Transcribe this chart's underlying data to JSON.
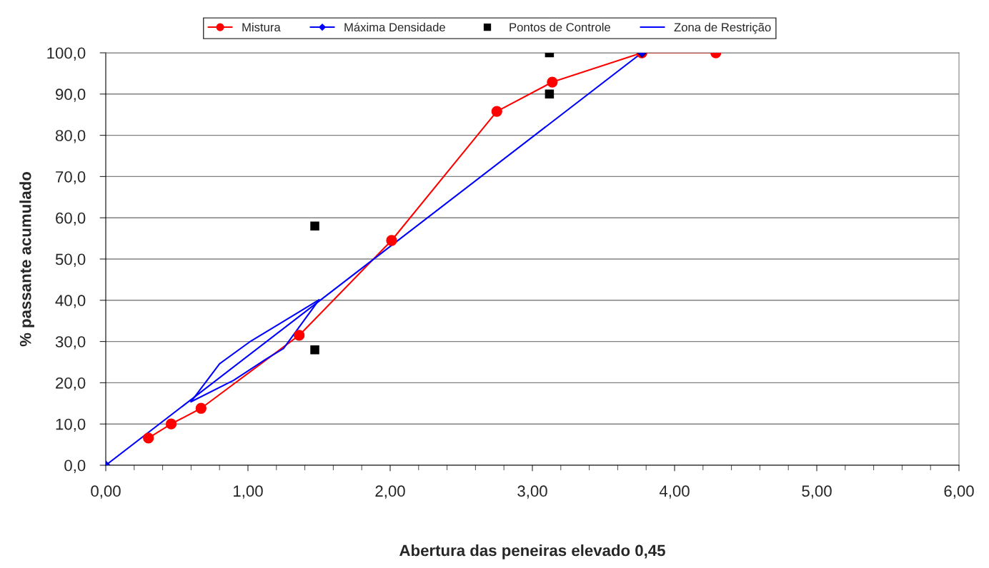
{
  "chart_data": {
    "type": "line",
    "xlabel": "Abertura das peneiras elevado 0,45",
    "ylabel": "% passante acumulado",
    "series": [
      {
        "name": "Mistura",
        "color": "#ff0000",
        "marker": "circle",
        "x": [
          0.3,
          0.46,
          0.67,
          1.36,
          2.01,
          2.75,
          3.14,
          3.77,
          4.29
        ],
        "values": [
          6.6,
          10.0,
          13.8,
          31.5,
          54.5,
          85.8,
          92.9,
          100,
          100
        ]
      },
      {
        "name": "Máxima Densidade",
        "color": "#0000ff",
        "marker": "diamond",
        "x": [
          0,
          3.77
        ],
        "values": [
          0,
          100
        ]
      },
      {
        "name": "Pontos de Controle",
        "type": "scatter",
        "color": "#000000",
        "marker": "square",
        "x": [
          1.47,
          1.47,
          3.12,
          3.12
        ],
        "values": [
          58,
          28,
          100,
          90
        ]
      },
      {
        "name": "Zona de Restrição",
        "color": "#0000ff",
        "marker": "none",
        "x": [
          0.6,
          0.8,
          1.02,
          1.25,
          1.5
        ],
        "values": [
          15.4,
          24.6,
          30.1,
          34.9,
          40.1
        ]
      },
      {
        "color": "#0000ff",
        "marker": "none",
        "x": [
          0.6,
          0.9,
          1.13,
          1.25,
          1.5
        ],
        "values": [
          15.4,
          20.6,
          25.8,
          28.3,
          40.1
        ]
      }
    ],
    "xlim": [
      0,
      6
    ],
    "ylim": [
      0,
      100
    ],
    "xticks": [
      {
        "value": 0,
        "label": "0,00"
      },
      {
        "value": 1,
        "label": "1,00"
      },
      {
        "value": 2,
        "label": "2,00"
      },
      {
        "value": 3,
        "label": "3,00"
      },
      {
        "value": 4,
        "label": "4,00"
      },
      {
        "value": 5,
        "label": "5,00"
      },
      {
        "value": 6,
        "label": "6,00"
      }
    ],
    "yticks": [
      {
        "value": 0,
        "label": "0,0"
      },
      {
        "value": 10,
        "label": "10,0"
      },
      {
        "value": 20,
        "label": "20,0"
      },
      {
        "value": 30,
        "label": "30,0"
      },
      {
        "value": 40,
        "label": "40,0"
      },
      {
        "value": 50,
        "label": "50,0"
      },
      {
        "value": 60,
        "label": "60,0"
      },
      {
        "value": 70,
        "label": "70,0"
      },
      {
        "value": 80,
        "label": "80,0"
      },
      {
        "value": 90,
        "label": "90,0"
      },
      {
        "value": 100,
        "label": "100,0"
      }
    ],
    "grid": "y",
    "legend": "top"
  }
}
